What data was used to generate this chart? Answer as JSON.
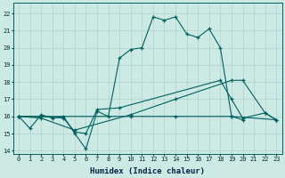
{
  "xlabel": "Humidex (Indice chaleur)",
  "xlim": [
    -0.5,
    23.5
  ],
  "ylim": [
    13.8,
    22.6
  ],
  "yticks": [
    14,
    15,
    16,
    17,
    18,
    19,
    20,
    21,
    22
  ],
  "xticks": [
    0,
    1,
    2,
    3,
    4,
    5,
    6,
    7,
    8,
    9,
    10,
    11,
    12,
    13,
    14,
    15,
    16,
    17,
    18,
    19,
    20,
    21,
    22,
    23
  ],
  "bg_color": "#cce9e4",
  "grid_color": "#aad4cc",
  "line_color": "#006060",
  "line1_x": [
    0,
    1,
    2,
    3,
    4,
    5,
    6,
    7,
    8,
    9,
    10,
    11,
    12,
    13,
    14,
    15,
    16,
    17,
    18,
    19,
    20
  ],
  "line1_y": [
    16.0,
    15.3,
    16.1,
    15.9,
    16.0,
    15.0,
    14.1,
    16.3,
    16.0,
    19.4,
    19.9,
    20.0,
    21.8,
    21.6,
    21.8,
    20.8,
    20.6,
    21.1,
    20.0,
    16.0,
    15.8
  ],
  "line2_x": [
    0,
    2,
    4,
    5,
    6,
    7,
    9,
    18,
    19,
    20,
    22,
    23
  ],
  "line2_y": [
    16.0,
    16.0,
    15.9,
    15.1,
    15.0,
    16.4,
    16.5,
    18.1,
    17.0,
    15.9,
    16.2,
    15.8
  ],
  "line3_x": [
    0,
    2,
    5,
    10,
    14,
    19,
    20,
    22,
    23
  ],
  "line3_y": [
    16.0,
    15.9,
    15.2,
    16.1,
    17.0,
    18.1,
    18.1,
    16.2,
    15.8
  ],
  "line4_x": [
    0,
    10,
    14,
    19,
    23
  ],
  "line4_y": [
    16.0,
    16.0,
    16.0,
    16.0,
    15.8
  ]
}
